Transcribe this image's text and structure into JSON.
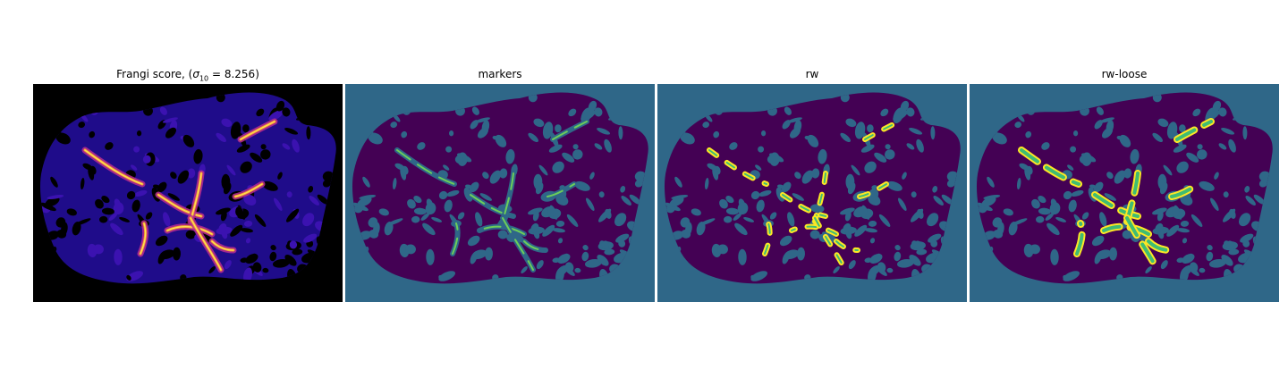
{
  "figure": {
    "panels": [
      {
        "id": "frangi",
        "title_prefix": "Frangi score, (",
        "title_symbol": "σ",
        "title_subscript": "10",
        "title_suffix": " = 8.256)"
      },
      {
        "id": "markers",
        "title": "markers"
      },
      {
        "id": "rw",
        "title": "rw"
      },
      {
        "id": "rw-loose",
        "title": "rw-loose"
      }
    ],
    "colors": {
      "frangi_background": "#000000",
      "frangi_tissue": "#1f0c8a",
      "frangi_low": "#3b12b0",
      "frangi_mid": "#b72b8f",
      "frangi_high": "#f9a030",
      "frangi_peak": "#fce35b",
      "label_background": "#2f6788",
      "label_tissue": "#440154",
      "label_vessel": "#3fbc73",
      "label_vessel_edge": "#fde725",
      "label_marker": "#6cce59"
    }
  }
}
